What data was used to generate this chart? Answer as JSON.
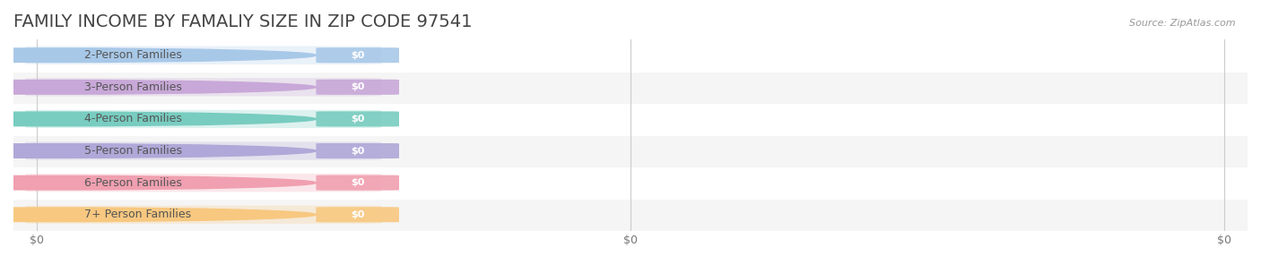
{
  "title": "FAMILY INCOME BY FAMALIY SIZE IN ZIP CODE 97541",
  "source_text": "Source: ZipAtlas.com",
  "categories": [
    "2-Person Families",
    "3-Person Families",
    "4-Person Families",
    "5-Person Families",
    "6-Person Families",
    "7+ Person Families"
  ],
  "values": [
    0,
    0,
    0,
    0,
    0,
    0
  ],
  "bar_colors": [
    "#a8c8e8",
    "#c8a8d8",
    "#78ccc0",
    "#b0a8d8",
    "#f0a0b0",
    "#f8c880"
  ],
  "dot_colors": [
    "#a8c8e8",
    "#c8a8d8",
    "#78ccc0",
    "#b0a8d8",
    "#f0a0b0",
    "#f8c880"
  ],
  "label_color": "#555555",
  "value_label_color": "#ffffff",
  "title_color": "#444444",
  "background_color": "#ffffff",
  "row_bg_colors": [
    "#f5f5f5",
    "#ffffff"
  ],
  "xlim": [
    0,
    1
  ],
  "x_ticks": [
    0,
    0.5,
    1.0
  ],
  "x_tick_labels": [
    "$0",
    "$0",
    "$0"
  ],
  "title_fontsize": 14,
  "label_fontsize": 9,
  "value_fontsize": 8
}
